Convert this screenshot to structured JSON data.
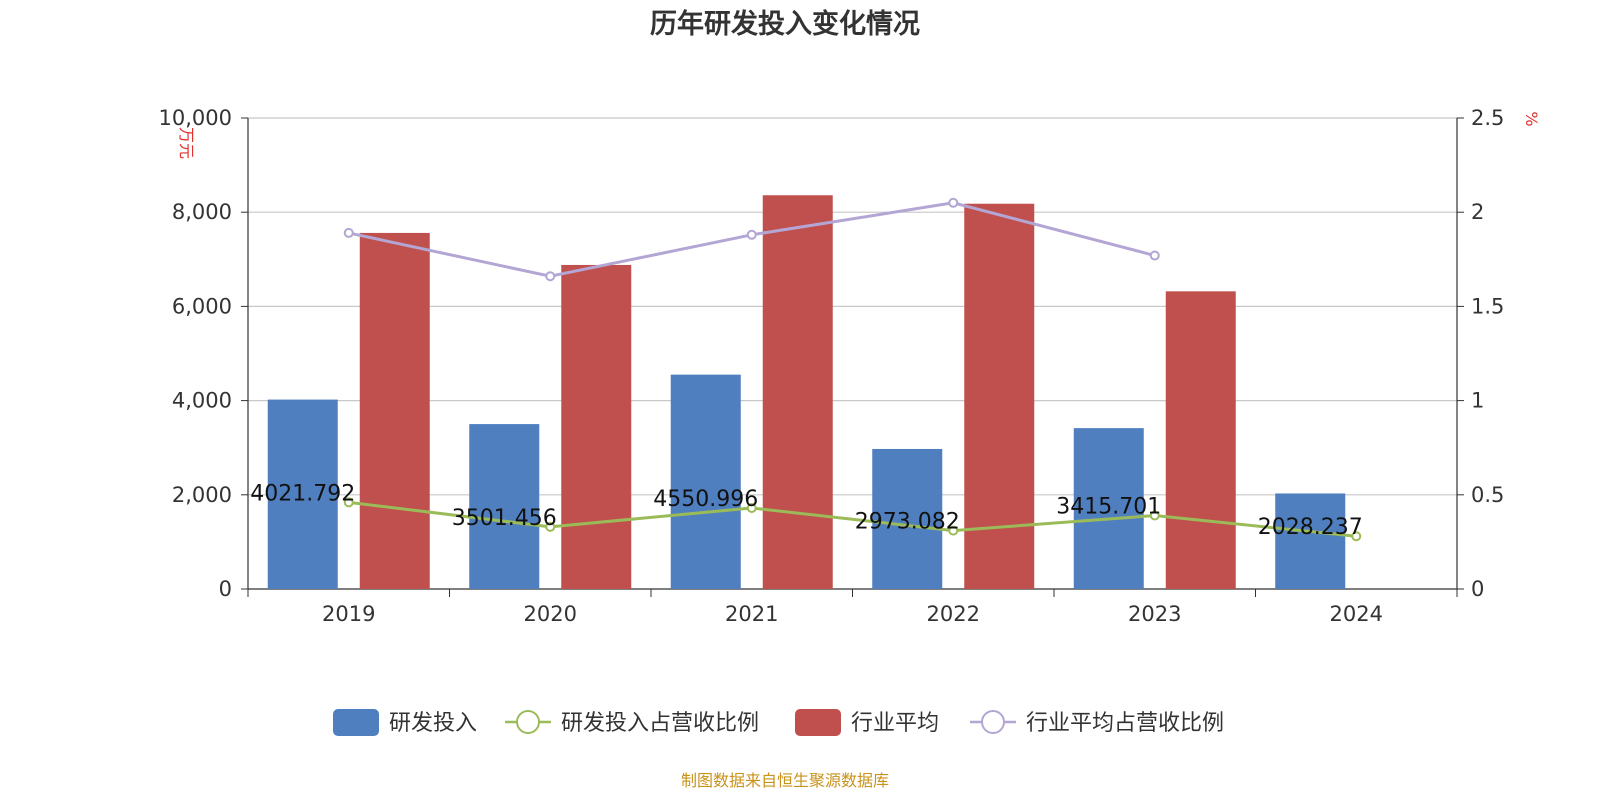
{
  "title": "历年研发投入变化情况",
  "source": "制图数据来自恒生聚源数据库",
  "colors": {
    "rd": "#4f7fbf",
    "rd_ratio": "#9bbb59",
    "industry": "#c0504d",
    "industry_ratio": "#b3a6d4",
    "unit": "#e0312f",
    "source": "#c9931a"
  },
  "chart_data": {
    "type": "bar",
    "categories": [
      "2019",
      "2020",
      "2021",
      "2022",
      "2023",
      "2024"
    ],
    "y_left": {
      "label": "万元",
      "range": [
        0,
        10000
      ],
      "ticks": [
        "0",
        "2,000",
        "4,000",
        "6,000",
        "8,000",
        "10,000"
      ],
      "tick_values": [
        0,
        2000,
        4000,
        6000,
        8000,
        10000
      ]
    },
    "y_right": {
      "label": "%",
      "range": [
        0,
        2.5
      ],
      "ticks": [
        "0",
        "0.5",
        "1",
        "1.5",
        "2",
        "2.5"
      ],
      "tick_values": [
        0,
        0.5,
        1,
        1.5,
        2,
        2.5
      ]
    },
    "grid": true,
    "legend_position": "bottom",
    "series": [
      {
        "name": "研发投入",
        "kind": "bar",
        "axis": "left",
        "color": "#4f7fbf",
        "values": [
          4021.792,
          3501.456,
          4550.996,
          2973.082,
          3415.701,
          2028.237
        ],
        "labels": [
          "4021.792",
          "3501.456",
          "4550.996",
          "2973.082",
          "3415.701",
          "2028.237"
        ]
      },
      {
        "name": "研发投入占营收比例",
        "kind": "line",
        "axis": "right",
        "color": "#9bbb59",
        "values": [
          0.46,
          0.33,
          0.43,
          0.31,
          0.39,
          0.28
        ]
      },
      {
        "name": "行业平均",
        "kind": "bar",
        "axis": "left",
        "color": "#c0504d",
        "values": [
          7560,
          6880,
          8360,
          8180,
          6320,
          null
        ]
      },
      {
        "name": "行业平均占营收比例",
        "kind": "line",
        "axis": "right",
        "color": "#b3a6d4",
        "values": [
          1.89,
          1.66,
          1.88,
          2.05,
          1.77,
          null
        ]
      }
    ]
  }
}
